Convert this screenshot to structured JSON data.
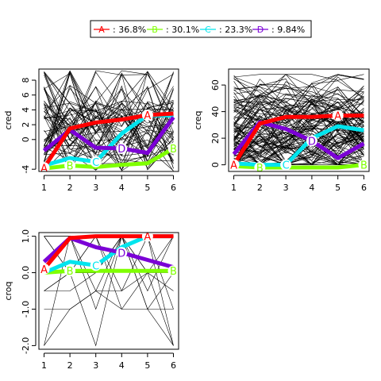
{
  "legend": {
    "entries": [
      {
        "letter": "A",
        "label": ": 36.8%",
        "color": "#ff0000"
      },
      {
        "letter": "B",
        "label": ": 30.1%",
        "color": "#7fff00"
      },
      {
        "letter": "C",
        "label": ": 23.3%",
        "color": "#00e5ee"
      },
      {
        "letter": "D",
        "label": ": 9.84%",
        "color": "#7b00d6"
      }
    ]
  },
  "chart_data": [
    {
      "type": "line",
      "ylabel": "cred",
      "x": [
        1,
        2,
        3,
        4,
        5,
        6
      ],
      "xticks": [
        "1",
        "2",
        "3",
        "4",
        "5",
        "6"
      ],
      "ylim": [
        -4.3,
        9.5
      ],
      "yticks": [
        -4,
        0,
        2,
        4,
        6,
        8
      ],
      "series": [
        {
          "name": "A",
          "color": "#ff0000",
          "values": [
            -3.8,
            1.5,
            2.3,
            2.7,
            3.3,
            3.5
          ]
        },
        {
          "name": "B",
          "color": "#7fff00",
          "values": [
            -3.9,
            -3.5,
            -3.7,
            -3.4,
            -3.2,
            -1.2
          ]
        },
        {
          "name": "C",
          "color": "#00e5ee",
          "values": [
            -3.5,
            -2.5,
            -3.0,
            0.8,
            3.3,
            3.2
          ]
        },
        {
          "name": "D",
          "color": "#7b00d6",
          "values": [
            -1.5,
            1.3,
            -1.1,
            -1.2,
            -1.8,
            3.0
          ]
        }
      ]
    },
    {
      "type": "line",
      "ylabel": "creq",
      "x": [
        1,
        2,
        3,
        4,
        5,
        6
      ],
      "xticks": [
        "1",
        "2",
        "3",
        "4",
        "5",
        "6"
      ],
      "ylim": [
        -5,
        72
      ],
      "yticks": [
        0,
        20,
        40,
        60
      ],
      "series": [
        {
          "name": "A",
          "color": "#ff0000",
          "values": [
            0,
            31,
            36,
            36,
            37,
            37
          ]
        },
        {
          "name": "B",
          "color": "#7fff00",
          "values": [
            -1,
            -2,
            -2,
            -2,
            -2,
            0
          ]
        },
        {
          "name": "C",
          "color": "#00e5ee",
          "values": [
            1,
            0,
            0,
            20,
            29,
            26
          ]
        },
        {
          "name": "D",
          "color": "#7b00d6",
          "values": [
            8,
            32,
            27,
            18,
            5,
            16
          ]
        }
      ]
    },
    {
      "type": "line",
      "ylabel": "croq",
      "x": [
        1,
        2,
        3,
        4,
        5,
        6
      ],
      "xticks": [
        "1",
        "2",
        "3",
        "4",
        "5",
        "6"
      ],
      "ylim": [
        -2.1,
        1.1
      ],
      "yticks": [
        -2.0,
        -1.0,
        0.0,
        1.0
      ],
      "ytickLabels": [
        "-2.0",
        "-1.0",
        "0.0",
        "1.0"
      ],
      "series": [
        {
          "name": "A",
          "color": "#ff0000",
          "values": [
            0.1,
            0.95,
            1.0,
            1.0,
            1.0,
            1.0
          ]
        },
        {
          "name": "B",
          "color": "#7fff00",
          "values": [
            0.0,
            0.05,
            0.05,
            0.05,
            0.05,
            0.05
          ]
        },
        {
          "name": "C",
          "color": "#00e5ee",
          "values": [
            0.0,
            0.3,
            0.2,
            0.7,
            1.0,
            1.0
          ]
        },
        {
          "name": "D",
          "color": "#7b00d6",
          "values": [
            0.3,
            0.95,
            0.7,
            0.55,
            0.35,
            0.15
          ]
        }
      ]
    }
  ]
}
